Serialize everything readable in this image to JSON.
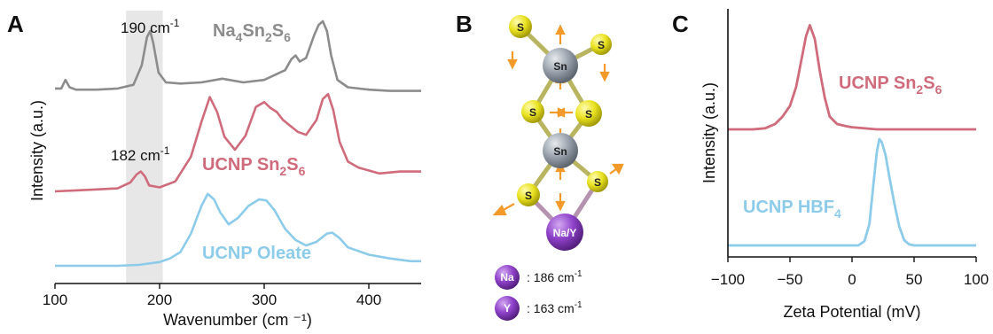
{
  "panels": {
    "A": "A",
    "B": "B",
    "C": "C"
  },
  "colors": {
    "gray": "#8c8c8c",
    "red": "#cf6b7b",
    "blue": "#8ccbe9",
    "shade": "#e7e7e7",
    "sulfur": "#e7e024",
    "tin": "#9aa3ad",
    "sodium": "#8e41c9",
    "arrow": "#f39a2a"
  },
  "chart_data": [
    {
      "type": "line",
      "panel": "A",
      "xlabel": "Wavenumber (cm ⁻¹)",
      "ylabel": "Intensity (a.u.)",
      "xlim": [
        100,
        450
      ],
      "xticks": [
        "100",
        "200",
        "300",
        "400"
      ],
      "xtick_values": [
        100,
        200,
        300,
        400
      ],
      "shaded_band": [
        168,
        203
      ],
      "annotations": [
        {
          "text": "190 cm",
          "sup": "-1"
        },
        {
          "text": "182 cm",
          "sup": "-1"
        }
      ],
      "series": [
        {
          "name_parts": [
            "Na",
            "4",
            "Sn",
            "2",
            "S",
            "6"
          ],
          "color": "gray",
          "x": [
            100,
            106,
            110,
            114,
            120,
            140,
            160,
            175,
            183,
            188,
            191,
            194,
            199,
            206,
            220,
            240,
            260,
            280,
            300,
            310,
            320,
            326,
            330,
            334,
            340,
            348,
            352,
            356,
            360,
            364,
            370,
            380,
            400,
            420,
            440,
            450
          ],
          "y": [
            0.03,
            0.03,
            0.1,
            0.04,
            0.02,
            0.02,
            0.03,
            0.06,
            0.22,
            0.45,
            0.5,
            0.4,
            0.16,
            0.08,
            0.07,
            0.08,
            0.11,
            0.08,
            0.1,
            0.14,
            0.18,
            0.27,
            0.3,
            0.25,
            0.28,
            0.47,
            0.55,
            0.58,
            0.5,
            0.3,
            0.1,
            0.04,
            0.02,
            0.01,
            0.01,
            0.01
          ]
        },
        {
          "name_parts": [
            "UCNP Sn",
            "2",
            "S",
            "6"
          ],
          "color": "red",
          "x": [
            100,
            120,
            140,
            160,
            172,
            178,
            182,
            186,
            190,
            200,
            215,
            230,
            240,
            248,
            255,
            262,
            272,
            282,
            292,
            300,
            306,
            312,
            318,
            325,
            332,
            340,
            350,
            356,
            361,
            366,
            372,
            380,
            390,
            410,
            430,
            450
          ],
          "y": [
            0.0,
            0.01,
            0.02,
            0.03,
            0.09,
            0.17,
            0.2,
            0.15,
            0.06,
            0.04,
            0.1,
            0.35,
            0.7,
            0.95,
            0.8,
            0.55,
            0.42,
            0.56,
            0.85,
            0.9,
            0.84,
            0.8,
            0.72,
            0.66,
            0.6,
            0.57,
            0.72,
            0.93,
            0.98,
            0.82,
            0.5,
            0.3,
            0.24,
            0.18,
            0.2,
            0.2
          ]
        },
        {
          "name_parts": [
            "UCNP Oleate"
          ],
          "color": "blue",
          "x": [
            100,
            120,
            140,
            160,
            180,
            200,
            210,
            220,
            230,
            240,
            246,
            252,
            258,
            266,
            275,
            285,
            295,
            302,
            310,
            320,
            330,
            340,
            350,
            360,
            365,
            372,
            380,
            400,
            420,
            440,
            450
          ],
          "y": [
            0.0,
            0.0,
            0.0,
            0.0,
            0.01,
            0.04,
            0.08,
            0.15,
            0.35,
            0.65,
            0.78,
            0.72,
            0.58,
            0.45,
            0.52,
            0.65,
            0.72,
            0.71,
            0.6,
            0.4,
            0.28,
            0.22,
            0.26,
            0.35,
            0.36,
            0.3,
            0.2,
            0.12,
            0.08,
            0.05,
            0.05
          ]
        }
      ]
    },
    {
      "type": "line",
      "panel": "C",
      "xlabel": "Zeta Potential (mV)",
      "ylabel": "Intensity (a.u.)",
      "xlim": [
        -100,
        100
      ],
      "xticks": [
        "−100",
        "−50",
        "0",
        "50",
        "100"
      ],
      "xtick_values": [
        -100,
        -50,
        0,
        50,
        100
      ],
      "series": [
        {
          "name_parts": [
            "UCNP Sn",
            "2",
            "S",
            "6"
          ],
          "color": "red",
          "x": [
            -100,
            -80,
            -70,
            -62,
            -56,
            -50,
            -45,
            -40,
            -37,
            -34,
            -30,
            -26,
            -22,
            -18,
            -12,
            -5,
            0,
            20,
            50,
            100
          ],
          "y": [
            0.0,
            0.0,
            0.01,
            0.05,
            0.12,
            0.22,
            0.4,
            0.7,
            0.88,
            0.98,
            0.85,
            0.55,
            0.3,
            0.12,
            0.05,
            0.03,
            0.02,
            0.0,
            0.0,
            0.0
          ]
        },
        {
          "name_parts": [
            "UCNP HBF",
            "4",
            "",
            ""
          ],
          "color": "blue",
          "x": [
            -100,
            -50,
            0,
            5,
            10,
            14,
            17,
            20,
            22,
            24,
            27,
            30,
            34,
            38,
            42,
            46,
            50,
            100
          ],
          "y": [
            0.0,
            0.0,
            0.0,
            0.0,
            0.04,
            0.2,
            0.55,
            0.88,
            1.0,
            0.97,
            0.85,
            0.65,
            0.4,
            0.18,
            0.05,
            0.01,
            0.0,
            0.0
          ]
        }
      ]
    }
  ],
  "structure": {
    "atoms": {
      "S": "S",
      "Sn": "Sn",
      "NaY": "Na/Y",
      "Na": "Na",
      "Y": "Y"
    },
    "legend": [
      {
        "atom": "Na",
        "text": ": 186 cm",
        "sup": "-1"
      },
      {
        "atom": "Y",
        "text": ": 163 cm",
        "sup": "-1"
      }
    ]
  }
}
